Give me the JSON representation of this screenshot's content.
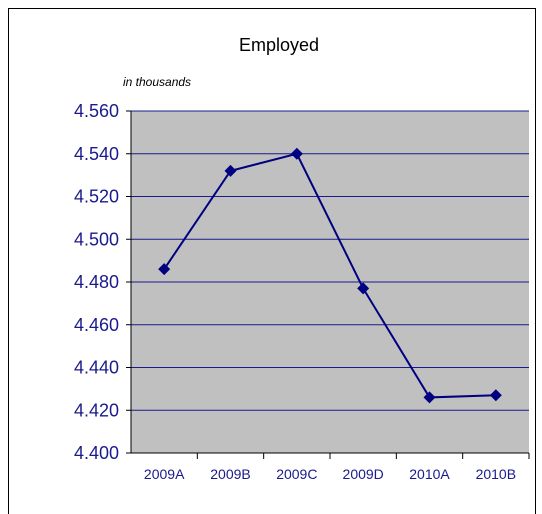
{
  "chart_data": {
    "type": "line",
    "title": "Employed",
    "subtitle": "in thousands",
    "categories": [
      "2009A",
      "2009B",
      "2009C",
      "2009D",
      "2010A",
      "2010B"
    ],
    "series": [
      {
        "values": [
          4.486,
          4.532,
          4.54,
          4.477,
          4.426,
          4.427
        ]
      }
    ],
    "ylim": [
      4.4,
      4.56
    ],
    "yticks": [
      "4.400",
      "4.420",
      "4.440",
      "4.460",
      "4.480",
      "4.500",
      "4.520",
      "4.540",
      "4.560"
    ],
    "grid": true,
    "legend": "none",
    "colors": {
      "line": "#000080",
      "marker": "#000080",
      "plot_background": "#c0c0c0",
      "gridline": "#1a1a8c",
      "tick_text": "#1a1a8c"
    }
  }
}
